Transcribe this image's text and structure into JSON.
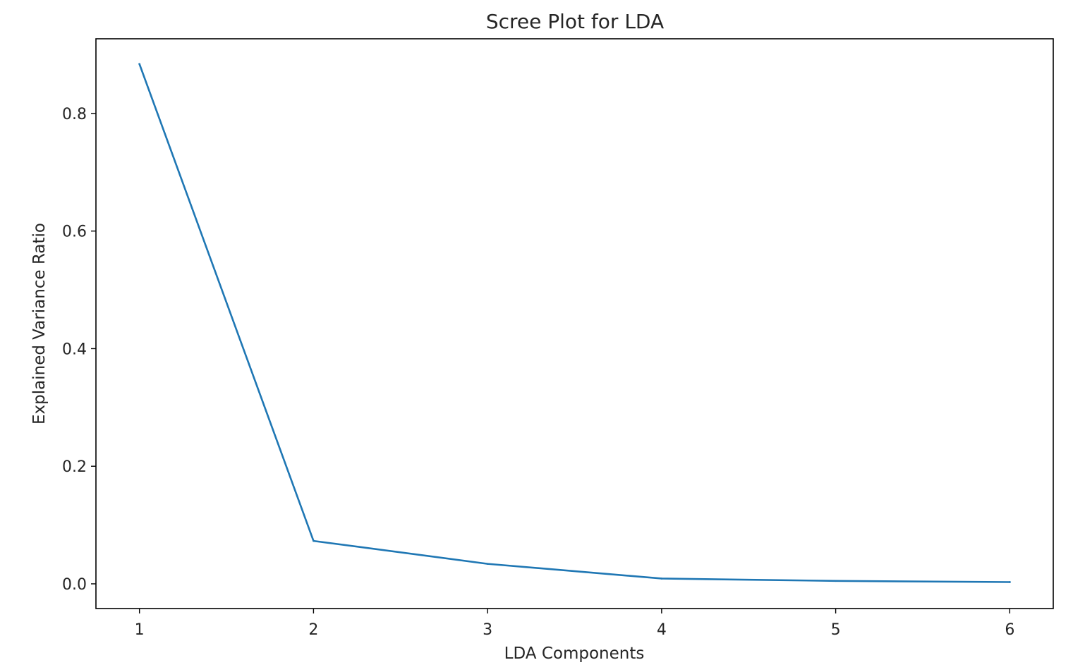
{
  "chart_data": {
    "type": "line",
    "title": "Scree Plot for LDA",
    "xlabel": "LDA Components",
    "ylabel": "Explained Variance Ratio",
    "x": [
      1,
      2,
      3,
      4,
      5,
      6
    ],
    "series": [
      {
        "values": [
          0.884,
          0.073,
          0.034,
          0.009,
          0.005,
          0.003
        ],
        "color": "#1f77b4"
      }
    ],
    "xlim": [
      0.75,
      6.25
    ],
    "ylim": [
      -0.042,
      0.927
    ],
    "xticks": [
      1,
      2,
      3,
      4,
      5,
      6
    ],
    "xtick_labels": [
      "1",
      "2",
      "3",
      "4",
      "5",
      "6"
    ],
    "yticks": [
      0.0,
      0.2,
      0.4,
      0.6,
      0.8
    ],
    "ytick_labels": [
      "0.0",
      "0.2",
      "0.4",
      "0.6",
      "0.8"
    ],
    "grid": false,
    "legend": "none"
  }
}
